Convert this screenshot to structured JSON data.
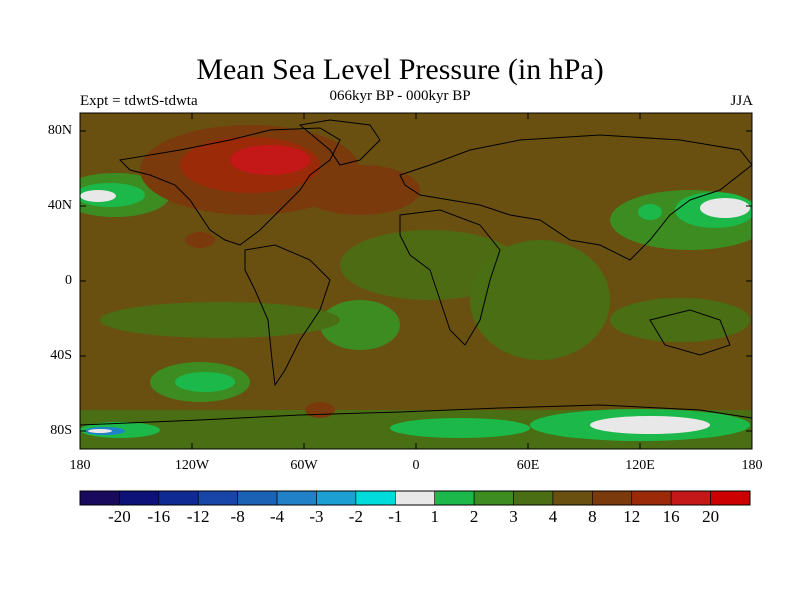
{
  "title": "Mean Sea Level Pressure (in hPa)",
  "subtitle": "066kyr BP - 000kyr BP",
  "experiment": "Expt = tdwtS-tdwta",
  "season": "JJA",
  "y_ticks": [
    "80N",
    "40N",
    "0",
    "40S",
    "80S"
  ],
  "x_ticks": [
    "180",
    "120W",
    "60W",
    "0",
    "60E",
    "120E",
    "180"
  ],
  "colorbar": {
    "colors": [
      "#1a0a5e",
      "#0d1278",
      "#102a94",
      "#1846a8",
      "#1c62b4",
      "#2080c8",
      "#1ca0d4",
      "#00dcdc",
      "#e8e8e8",
      "#1cb84a",
      "#3c8c22",
      "#4a6e14",
      "#6a5010",
      "#7a3a0c",
      "#9a2a08",
      "#c41818",
      "#cc0000"
    ],
    "labels": [
      "-20",
      "-16",
      "-12",
      "-8",
      "-4",
      "-3",
      "-2",
      "-1",
      "1",
      "2",
      "3",
      "4",
      "8",
      "12",
      "16",
      "20"
    ]
  }
}
